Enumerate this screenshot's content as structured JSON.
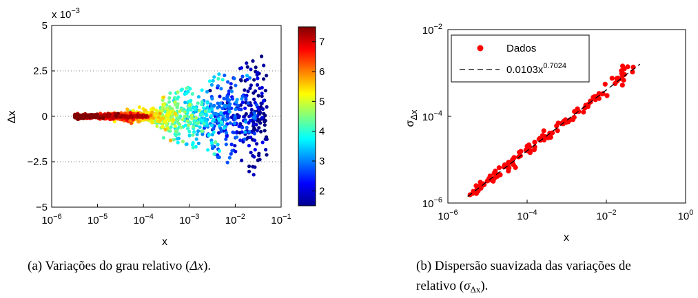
{
  "left": {
    "chart_data": {
      "type": "scatter",
      "xscale": "log",
      "xlim": [
        1e-06,
        0.1
      ],
      "ylim": [
        -5,
        5
      ],
      "y_multiplier_label": "x 10",
      "y_multiplier_exp": "−3",
      "xlabel": "x",
      "ylabel": "Δx",
      "x_ticks": [
        {
          "base": "10",
          "exp": "−6"
        },
        {
          "base": "10",
          "exp": "−5"
        },
        {
          "base": "10",
          "exp": "−4"
        },
        {
          "base": "10",
          "exp": "−3"
        },
        {
          "base": "10",
          "exp": "−2"
        },
        {
          "base": "10",
          "exp": "−1"
        }
      ],
      "y_ticks": [
        "5",
        "2.5",
        "0",
        "−2.5",
        "−5"
      ],
      "y_tick_values": [
        5,
        2.5,
        0,
        -2.5,
        -5
      ],
      "grid": "dotted-horizontal",
      "colorbar": {
        "ticks": [
          "2",
          "3",
          "4",
          "5",
          "6",
          "7"
        ],
        "tick_values": [
          2,
          3,
          4,
          5,
          6,
          7
        ],
        "range": [
          1.5,
          7.5
        ],
        "colormap": "jet"
      },
      "point_cloud": {
        "x_log10_range": [
          -5.5,
          -1.3
        ],
        "y_core_spread": 0.3,
        "y_max": 3.3,
        "y_min": -4.4
      }
    },
    "caption_prefix": "(a)  Variações do grau relativo (",
    "caption_math": "Δx",
    "caption_suffix": ")."
  },
  "right": {
    "chart_data": {
      "type": "scatter",
      "xscale": "log",
      "yscale": "log",
      "xlim": [
        1e-06,
        1
      ],
      "ylim": [
        1e-06,
        0.01
      ],
      "xlabel": "x",
      "ylabel": "σ",
      "ylabel_sub": "Δx",
      "x_ticks": [
        {
          "base": "10",
          "exp": "−6"
        },
        {
          "base": "10",
          "exp": "−4"
        },
        {
          "base": "10",
          "exp": "−2"
        },
        {
          "base": "10",
          "exp": "0"
        }
      ],
      "y_ticks": [
        {
          "base": "10",
          "exp": "−2"
        },
        {
          "base": "10",
          "exp": "−4"
        },
        {
          "base": "10",
          "exp": "−6"
        }
      ],
      "series": [
        {
          "name": "Dados",
          "color": "#ff0000",
          "kind": "points",
          "x_log10_range": [
            -5.5,
            -1.2
          ]
        },
        {
          "name": "0.0103x",
          "name_exp": "0.7024",
          "color": "#000000",
          "kind": "dashed-fit",
          "coef": 0.0103,
          "power": 0.7024
        }
      ]
    },
    "caption_line1": "(b)  Dispersão suavizada das variações de",
    "caption_line2_prefix": "relativo (",
    "caption_math": "σ",
    "caption_math_sub": "Δx",
    "caption_line2_suffix": ")."
  }
}
